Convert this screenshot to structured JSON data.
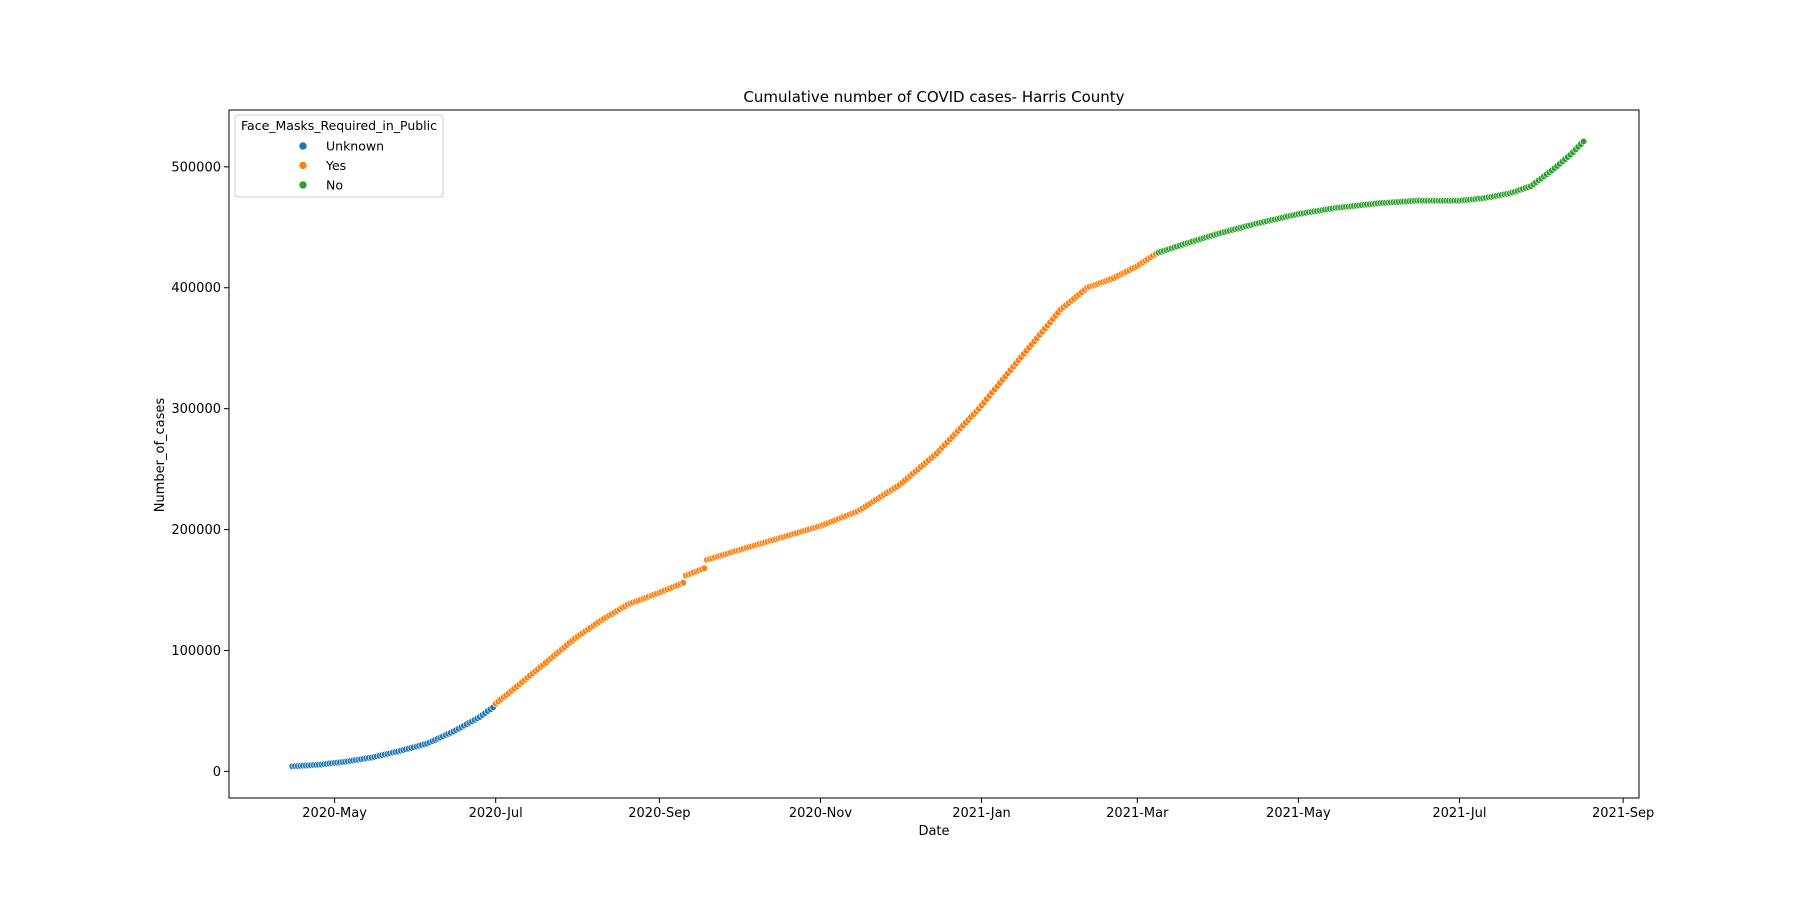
{
  "chart_data": {
    "type": "scatter",
    "title": "Cumulative number of COVID cases- Harris County",
    "xlabel": "Date",
    "ylabel": "Number_of_cases",
    "x_type": "date",
    "xlim": [
      "2020-03-22",
      "2021-09-07"
    ],
    "ylim": [
      -22000,
      547000
    ],
    "x_ticks": [
      {
        "date": "2020-05-01",
        "label": "2020-May"
      },
      {
        "date": "2020-07-01",
        "label": "2020-Jul"
      },
      {
        "date": "2020-09-01",
        "label": "2020-Sep"
      },
      {
        "date": "2020-11-01",
        "label": "2020-Nov"
      },
      {
        "date": "2021-01-01",
        "label": "2021-Jan"
      },
      {
        "date": "2021-03-01",
        "label": "2021-Mar"
      },
      {
        "date": "2021-05-01",
        "label": "2021-May"
      },
      {
        "date": "2021-07-01",
        "label": "2021-Jul"
      },
      {
        "date": "2021-09-01",
        "label": "2021-Sep"
      }
    ],
    "y_ticks": [
      0,
      100000,
      200000,
      300000,
      400000,
      500000
    ],
    "grid": false,
    "legend": {
      "title": "Face_Masks_Required_in_Public",
      "position": "top-left"
    },
    "series": [
      {
        "name": "Unknown",
        "color": "#1f77b4",
        "anchors": [
          [
            "2020-04-15",
            4200
          ],
          [
            "2020-04-25",
            5500
          ],
          [
            "2020-05-05",
            8000
          ],
          [
            "2020-05-15",
            11500
          ],
          [
            "2020-05-25",
            16500
          ],
          [
            "2020-06-05",
            23000
          ],
          [
            "2020-06-15",
            33000
          ],
          [
            "2020-06-25",
            45000
          ],
          [
            "2020-06-30",
            53000
          ]
        ]
      },
      {
        "name": "Yes",
        "color": "#ff7f0e",
        "anchors": [
          [
            "2020-07-01",
            56000
          ],
          [
            "2020-07-10",
            72000
          ],
          [
            "2020-07-20",
            90000
          ],
          [
            "2020-07-31",
            110000
          ],
          [
            "2020-08-10",
            125000
          ],
          [
            "2020-08-20",
            138000
          ],
          [
            "2020-08-31",
            147000
          ],
          [
            "2020-09-10",
            156000
          ],
          [
            "2020-09-11",
            162000
          ],
          [
            "2020-09-18",
            168000
          ],
          [
            "2020-09-19",
            175000
          ],
          [
            "2020-10-01",
            183000
          ],
          [
            "2020-10-15",
            192000
          ],
          [
            "2020-11-01",
            203000
          ],
          [
            "2020-11-15",
            215000
          ],
          [
            "2020-12-01",
            237000
          ],
          [
            "2020-12-15",
            263000
          ],
          [
            "2020-12-31",
            300000
          ],
          [
            "2021-01-15",
            340000
          ],
          [
            "2021-01-31",
            382000
          ],
          [
            "2021-02-10",
            400000
          ],
          [
            "2021-02-20",
            408000
          ],
          [
            "2021-03-01",
            418000
          ],
          [
            "2021-03-08",
            428000
          ]
        ]
      },
      {
        "name": "No",
        "color": "#2ca02c",
        "anchors": [
          [
            "2021-03-09",
            429000
          ],
          [
            "2021-03-20",
            437000
          ],
          [
            "2021-04-01",
            445000
          ],
          [
            "2021-04-15",
            453000
          ],
          [
            "2021-05-01",
            461000
          ],
          [
            "2021-05-15",
            466000
          ],
          [
            "2021-06-01",
            470000
          ],
          [
            "2021-06-15",
            472000
          ],
          [
            "2021-07-01",
            472000
          ],
          [
            "2021-07-10",
            474000
          ],
          [
            "2021-07-20",
            478000
          ],
          [
            "2021-07-28",
            484000
          ],
          [
            "2021-08-05",
            497000
          ],
          [
            "2021-08-12",
            510000
          ],
          [
            "2021-08-17",
            521000
          ]
        ]
      }
    ]
  }
}
